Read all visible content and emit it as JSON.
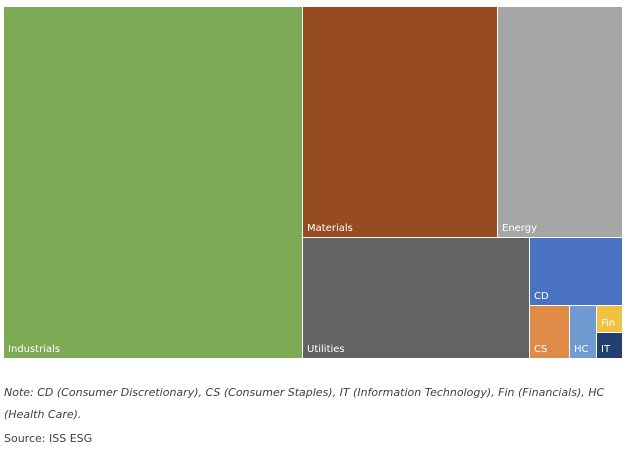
{
  "chart_data": {
    "type": "treemap",
    "cells": [
      {
        "label": "Industrials",
        "color": "#7daa55"
      },
      {
        "label": "Materials",
        "color": "#964c20"
      },
      {
        "label": "Energy",
        "color": "#a6a6a6"
      },
      {
        "label": "Utilities",
        "color": "#636363"
      },
      {
        "label": "CD",
        "color": "#4a72c3"
      },
      {
        "label": "CS",
        "color": "#e08a47"
      },
      {
        "label": "HC",
        "color": "#709bd2"
      },
      {
        "label": "Fin",
        "color": "#f0c142"
      },
      {
        "label": "IT",
        "color": "#233f6f"
      }
    ]
  },
  "note": "Note: CD (Consumer Discretionary), CS (Consumer Staples), IT (Information Technology), Fin (Financials), HC (Health Care).",
  "source": "Source: ISS ESG"
}
